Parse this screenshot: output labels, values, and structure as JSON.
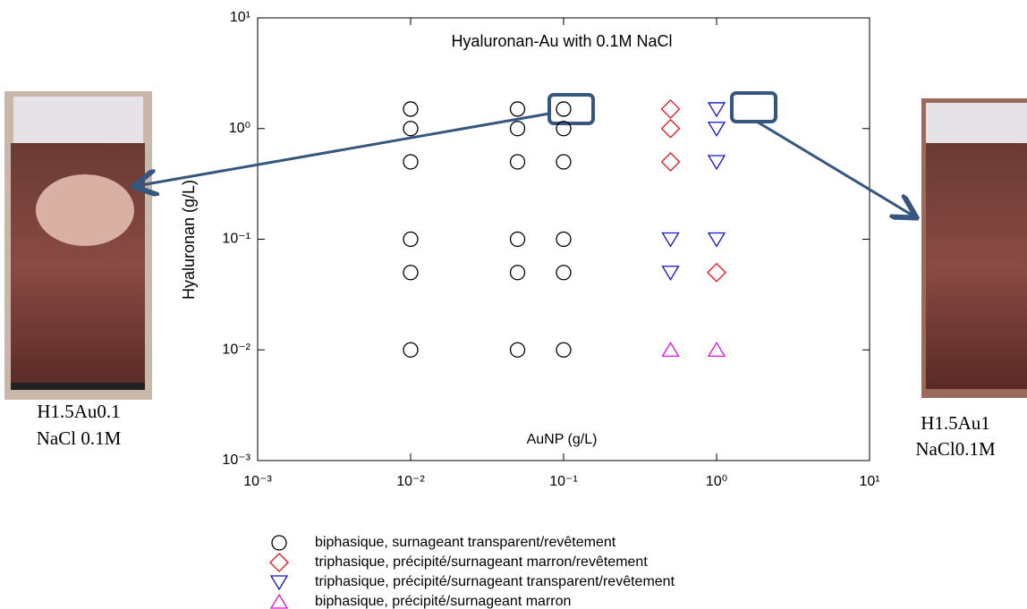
{
  "chart_data": {
    "type": "scatter",
    "title": "Hyaluronan-Au with 0.1M NaCl",
    "x_label": "AuNP (g/L)",
    "y_label": "Hyaluronan (g/L)",
    "log_x": true,
    "log_y": true,
    "xlim": [
      0.001,
      10
    ],
    "ylim": [
      0.001,
      10
    ],
    "xticks": [
      {
        "value": 0.001,
        "label": "10⁻³"
      },
      {
        "value": 0.01,
        "label": "10⁻²"
      },
      {
        "value": 0.1,
        "label": "10⁻¹"
      },
      {
        "value": 1,
        "label": "10⁰"
      },
      {
        "value": 10,
        "label": "10¹"
      }
    ],
    "yticks": [
      {
        "value": 0.001,
        "label": "10⁻³"
      },
      {
        "value": 0.01,
        "label": "10⁻²"
      },
      {
        "value": 0.1,
        "label": "10⁻¹"
      },
      {
        "value": 1,
        "label": "10⁰"
      },
      {
        "value": 10,
        "label": "10¹"
      }
    ],
    "legend": "bottom",
    "series": [
      {
        "name": "biphasique, surnageant transparent/revêtement",
        "color": "#000000",
        "marker": "circle",
        "x": [
          0.01,
          0.01,
          0.01,
          0.01,
          0.01,
          0.01,
          0.05,
          0.05,
          0.05,
          0.05,
          0.05,
          0.05,
          0.1,
          0.1,
          0.1,
          0.1,
          0.1,
          0.1
        ],
        "values": [
          1.5,
          1.0,
          0.5,
          0.1,
          0.05,
          0.01,
          1.5,
          1.0,
          0.5,
          0.1,
          0.05,
          0.01,
          1.5,
          1.0,
          0.5,
          0.1,
          0.05,
          0.01
        ]
      },
      {
        "name": "triphasique, précipité/surnageant marron/revêtement",
        "color": "#e8141c",
        "marker": "diamond",
        "x": [
          0.5,
          0.5,
          0.5,
          1
        ],
        "values": [
          1.5,
          1.0,
          0.5,
          0.05
        ]
      },
      {
        "name": "triphasique, précipité/surnageant transparent/revêtement",
        "color": "#1414c8",
        "marker": "triangle-down",
        "x": [
          1,
          1,
          1,
          1,
          0.5,
          0.5
        ],
        "values": [
          1.5,
          1.0,
          0.5,
          0.1,
          0.1,
          0.05
        ]
      },
      {
        "name": "biphasique, précipité/surnageant marron",
        "color": "#e010e0",
        "marker": "triangle-up",
        "x": [
          0.5,
          1
        ],
        "values": [
          0.01,
          0.01
        ]
      }
    ],
    "captions": [
      [
        "H1.5Au0.1",
        "NaCl 0.1M"
      ],
      [
        "H1.5Au1",
        "NaCl0.1M"
      ]
    ]
  }
}
